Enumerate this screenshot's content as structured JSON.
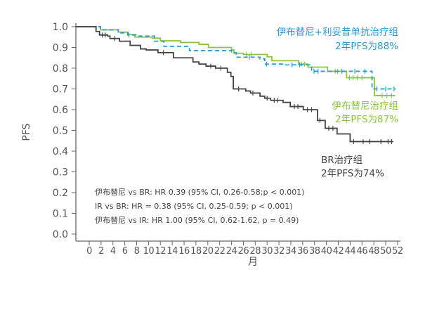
{
  "chart_data": {
    "type": "line",
    "step": true,
    "xlabel": "月",
    "ylabel": "PFS",
    "xlim": [
      0,
      52
    ],
    "ylim": [
      0,
      1.0
    ],
    "xticks": [
      0,
      2,
      4,
      6,
      8,
      10,
      12,
      14,
      16,
      18,
      20,
      22,
      24,
      26,
      28,
      30,
      32,
      34,
      36,
      38,
      40,
      42,
      44,
      46,
      48,
      50,
      52
    ],
    "yticks": [
      "0.0",
      "0.1",
      "0.2",
      "0.3",
      "0.4",
      "0.5",
      "0.6",
      "0.7",
      "0.8",
      "0.9",
      "1.0"
    ],
    "grid": false,
    "series": [
      {
        "name": "伊布替尼+利妥昔单抗治疗组",
        "color": "#2b9ad3",
        "dash": true,
        "points": [
          [
            0,
            1.0
          ],
          [
            1.9,
            0.985
          ],
          [
            4.9,
            0.97
          ],
          [
            6.5,
            0.96
          ],
          [
            7.9,
            0.955
          ],
          [
            11.0,
            0.93
          ],
          [
            12.6,
            0.905
          ],
          [
            16.9,
            0.885
          ],
          [
            24.0,
            0.875
          ],
          [
            24.8,
            0.853
          ],
          [
            28.8,
            0.845
          ],
          [
            29.6,
            0.82
          ],
          [
            33.1,
            0.816
          ],
          [
            37.5,
            0.785
          ],
          [
            47.7,
            0.7
          ],
          [
            51.7,
            0.7
          ]
        ],
        "censored": [
          [
            6.7,
            0.96
          ],
          [
            27,
            0.853
          ],
          [
            29.9,
            0.82
          ],
          [
            34.2,
            0.816
          ],
          [
            35.5,
            0.816
          ],
          [
            37.9,
            0.785
          ],
          [
            38.6,
            0.785
          ],
          [
            42.6,
            0.785
          ],
          [
            44.8,
            0.785
          ],
          [
            46.5,
            0.785
          ],
          [
            48.5,
            0.7
          ],
          [
            50.0,
            0.7
          ],
          [
            51.4,
            0.7
          ]
        ]
      },
      {
        "name": "伊布替尼治疗组",
        "color": "#8cc540",
        "dash": false,
        "points": [
          [
            0,
            1.0
          ],
          [
            1.9,
            0.985
          ],
          [
            4.9,
            0.974
          ],
          [
            6.5,
            0.962
          ],
          [
            7.7,
            0.95
          ],
          [
            10.6,
            0.945
          ],
          [
            12.0,
            0.932
          ],
          [
            15.4,
            0.924
          ],
          [
            18.5,
            0.915
          ],
          [
            20.1,
            0.9
          ],
          [
            24.0,
            0.888
          ],
          [
            24.4,
            0.872
          ],
          [
            26.0,
            0.866
          ],
          [
            30.0,
            0.855
          ],
          [
            30.8,
            0.836
          ],
          [
            35.3,
            0.82
          ],
          [
            36.9,
            0.805
          ],
          [
            40.2,
            0.785
          ],
          [
            43.4,
            0.754
          ],
          [
            48.1,
            0.668
          ],
          [
            51.6,
            0.668
          ]
        ],
        "censored": [
          [
            26.5,
            0.866
          ],
          [
            27.3,
            0.866
          ],
          [
            35.8,
            0.82
          ],
          [
            36.3,
            0.82
          ],
          [
            41.5,
            0.785
          ],
          [
            41.9,
            0.785
          ],
          [
            43.9,
            0.754
          ],
          [
            44.5,
            0.754
          ],
          [
            45.2,
            0.754
          ],
          [
            46.0,
            0.754
          ],
          [
            49.4,
            0.668
          ],
          [
            50.2,
            0.668
          ],
          [
            51.0,
            0.668
          ]
        ]
      },
      {
        "name": "BR治疗组",
        "color": "#444444",
        "dash": false,
        "points": [
          [
            0,
            1.0
          ],
          [
            1.15,
            0.977
          ],
          [
            1.74,
            0.96
          ],
          [
            3.1,
            0.955
          ],
          [
            3.5,
            0.943
          ],
          [
            5.1,
            0.93
          ],
          [
            6.9,
            0.91
          ],
          [
            8.65,
            0.893
          ],
          [
            9.6,
            0.888
          ],
          [
            11.6,
            0.875
          ],
          [
            14.2,
            0.85
          ],
          [
            17.5,
            0.83
          ],
          [
            18.5,
            0.82
          ],
          [
            19.7,
            0.81
          ],
          [
            21.3,
            0.8
          ],
          [
            23.3,
            0.78
          ],
          [
            23.9,
            0.76
          ],
          [
            24.3,
            0.7
          ],
          [
            26.4,
            0.69
          ],
          [
            27.2,
            0.68
          ],
          [
            28.8,
            0.665
          ],
          [
            29.6,
            0.655
          ],
          [
            30.6,
            0.645
          ],
          [
            32.7,
            0.635
          ],
          [
            33.9,
            0.615
          ],
          [
            36.1,
            0.6
          ],
          [
            38.5,
            0.548
          ],
          [
            39.8,
            0.51
          ],
          [
            41.8,
            0.483
          ],
          [
            44.0,
            0.446
          ],
          [
            51.3,
            0.446
          ]
        ],
        "censored": [
          [
            2.2,
            0.96
          ],
          [
            2.7,
            0.96
          ],
          [
            4.3,
            0.943
          ],
          [
            12.5,
            0.875
          ],
          [
            20.5,
            0.81
          ],
          [
            22.2,
            0.8
          ],
          [
            25.2,
            0.7
          ],
          [
            27.6,
            0.68
          ],
          [
            30.0,
            0.655
          ],
          [
            31.2,
            0.645
          ],
          [
            31.8,
            0.645
          ],
          [
            34.6,
            0.615
          ],
          [
            35.2,
            0.615
          ],
          [
            36.8,
            0.6
          ],
          [
            37.5,
            0.6
          ],
          [
            38.9,
            0.548
          ],
          [
            40.4,
            0.51
          ],
          [
            41.1,
            0.51
          ],
          [
            44.6,
            0.446
          ],
          [
            46.2,
            0.446
          ],
          [
            47.3,
            0.446
          ],
          [
            49.2,
            0.446
          ],
          [
            50.4,
            0.446
          ],
          [
            51.0,
            0.446
          ]
        ]
      }
    ],
    "annotations": {
      "ir_name": "伊布替尼+利妥昔单抗治疗组",
      "ir_pfs": "2年PFS为88%",
      "i_name": "伊布替尼治疗组",
      "i_pfs": "2年PFS为87%",
      "br_name": "BR治疗组",
      "br_pfs": "2年PFS为74%",
      "hr_lines": [
        "伊布替尼 vs BR: HR 0.39 (95% CI, 0.26-0.58;p < 0.001)",
        "IR vs BR: HR = 0.38 (95% CI, 0.25-0.59; p < 0.001)",
        "伊布替尼 vs IR: HR 1.00 (95% CI, 0.62-1.62, p = 0.49)"
      ]
    }
  }
}
